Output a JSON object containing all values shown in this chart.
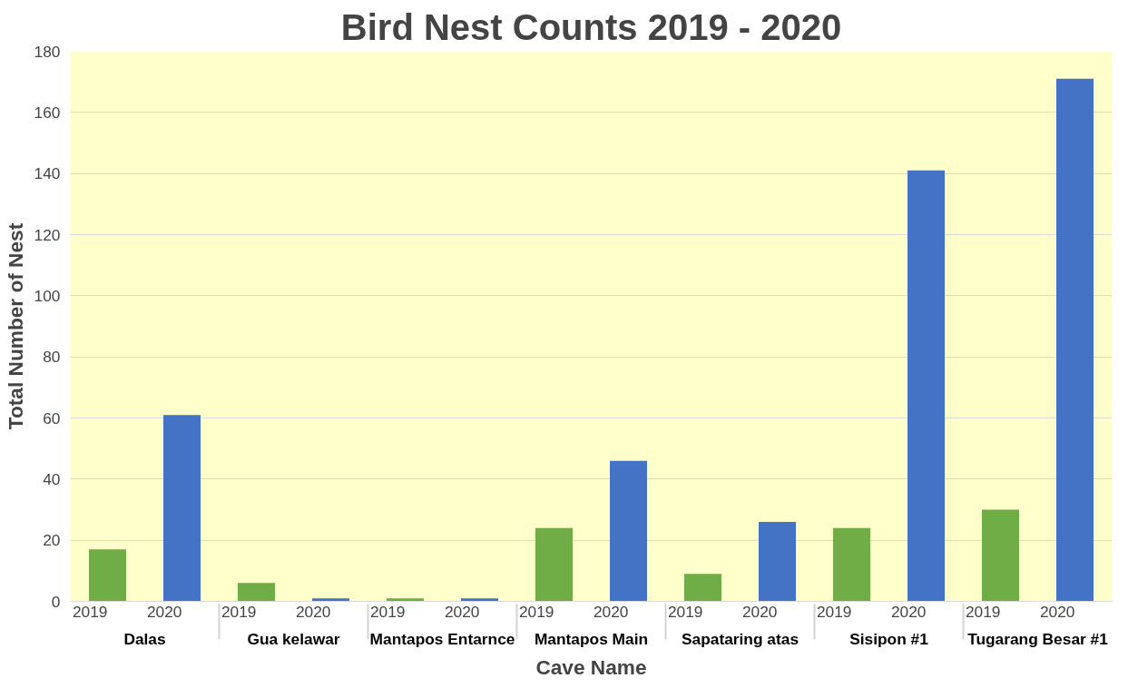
{
  "chart_data": {
    "type": "bar",
    "title": "Bird Nest Counts 2019 - 2020",
    "xlabel": "Cave Name",
    "ylabel": "Total Number of Nest",
    "categories": [
      "Dalas",
      "Gua kelawar",
      "Mantapos Entarnce",
      "Mantapos Main",
      "Sapataring atas",
      "Sisipon #1",
      "Tugarang Besar #1"
    ],
    "series": [
      {
        "name": "2019",
        "color": "#70ad47",
        "values": [
          17,
          6,
          1,
          24,
          9,
          24,
          30
        ]
      },
      {
        "name": "2020",
        "color": "#4472c4",
        "values": [
          61,
          1,
          1,
          46,
          26,
          141,
          171
        ]
      }
    ],
    "ylim": [
      0,
      180
    ],
    "yticks": [
      0,
      20,
      40,
      60,
      80,
      100,
      120,
      140,
      160,
      180
    ],
    "grid": "y"
  }
}
